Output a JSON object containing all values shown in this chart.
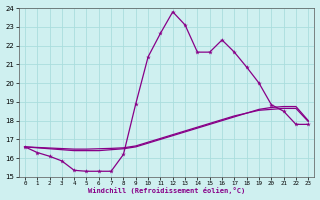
{
  "xlabel": "Windchill (Refroidissement éolien,°C)",
  "xlim": [
    -0.5,
    23.5
  ],
  "ylim": [
    15,
    24
  ],
  "xticks": [
    0,
    1,
    2,
    3,
    4,
    5,
    6,
    7,
    8,
    9,
    10,
    11,
    12,
    13,
    14,
    15,
    16,
    17,
    18,
    19,
    20,
    21,
    22,
    23
  ],
  "yticks": [
    15,
    16,
    17,
    18,
    19,
    20,
    21,
    22,
    23,
    24
  ],
  "bg_color": "#cff0f0",
  "line_color": "#880088",
  "grid_color": "#aadddd",
  "line1_x": [
    0,
    1,
    2,
    3,
    4,
    5,
    6,
    7,
    8,
    9,
    10,
    11,
    12,
    13,
    14,
    15,
    16,
    17,
    18,
    19,
    20,
    21,
    22,
    23
  ],
  "line1_y": [
    16.6,
    16.3,
    16.1,
    15.85,
    15.35,
    15.3,
    15.3,
    15.3,
    16.2,
    18.9,
    21.4,
    22.65,
    23.8,
    23.1,
    21.65,
    21.65,
    22.3,
    21.65,
    20.85,
    20.0,
    18.85,
    18.5,
    17.8,
    17.8
  ],
  "line2_x": [
    0,
    1,
    2,
    3,
    4,
    5,
    6,
    7,
    8,
    9,
    10,
    11,
    12,
    13,
    14,
    15,
    16,
    17,
    18,
    19,
    20,
    21,
    22,
    23
  ],
  "line2_y": [
    16.6,
    16.55,
    16.5,
    16.45,
    16.4,
    16.4,
    16.4,
    16.45,
    16.5,
    16.6,
    16.8,
    17.0,
    17.2,
    17.4,
    17.6,
    17.8,
    18.0,
    18.2,
    18.4,
    18.6,
    18.7,
    18.75,
    18.75,
    18.0
  ],
  "line3_x": [
    0,
    1,
    2,
    3,
    4,
    5,
    6,
    7,
    8,
    9,
    10,
    11,
    12,
    13,
    14,
    15,
    16,
    17,
    18,
    19,
    20,
    21,
    22,
    23
  ],
  "line3_y": [
    16.6,
    16.57,
    16.54,
    16.51,
    16.48,
    16.48,
    16.5,
    16.52,
    16.55,
    16.65,
    16.85,
    17.05,
    17.25,
    17.45,
    17.65,
    17.85,
    18.05,
    18.25,
    18.4,
    18.55,
    18.6,
    18.65,
    18.65,
    17.95
  ]
}
